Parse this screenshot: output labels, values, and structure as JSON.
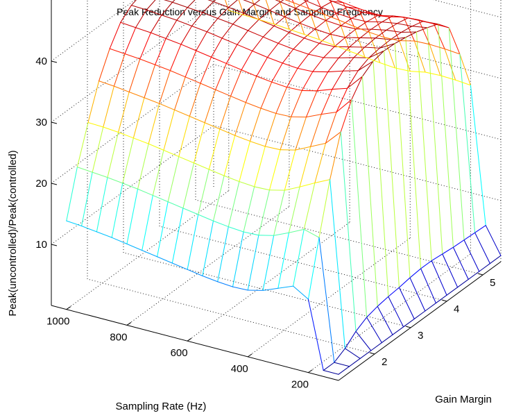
{
  "chart_data": {
    "type": "surface-mesh",
    "title": "Peak Reduction versus Gain Margin and Sampling Frequency",
    "xlabel": "Gain Margin",
    "ylabel": "Sampling Rate (Hz)",
    "zlabel": "Peak(uncontrolled)/Peak(controlled)",
    "x_ticks": [
      "2",
      "3",
      "4",
      "5"
    ],
    "y_ticks": [
      "1000",
      "800",
      "600",
      "400",
      "200"
    ],
    "z_ticks": [
      "10",
      "20",
      "30",
      "40"
    ],
    "xlim": [
      1,
      5.5
    ],
    "ylim": [
      100,
      1050
    ],
    "zlim": [
      0,
      50
    ],
    "colormap": "jet",
    "grid": true,
    "gain_margin": [
      1.0,
      1.3,
      1.6,
      1.9,
      2.2,
      2.5,
      2.8,
      3.1,
      3.4,
      3.7,
      4.0,
      4.3,
      4.6,
      4.9,
      5.2,
      5.5
    ],
    "sampling_rate": [
      1000,
      950,
      900,
      850,
      800,
      750,
      700,
      650,
      600,
      550,
      500,
      450,
      400,
      350,
      300,
      250,
      200,
      150,
      100
    ],
    "peak_ratio": [
      [
        14.5,
        22.0,
        28.0,
        33.5,
        37.5,
        40.5,
        42.0,
        42.7,
        43.2,
        43.4,
        43.5,
        43.4,
        43.1,
        41.5,
        36.0,
        29.5
      ],
      [
        14.3,
        21.8,
        27.9,
        33.3,
        37.3,
        40.3,
        41.9,
        42.6,
        43.1,
        43.3,
        43.4,
        43.3,
        43.0,
        41.4,
        35.9,
        29.4
      ],
      [
        14.0,
        21.6,
        27.7,
        33.0,
        37.1,
        40.1,
        41.7,
        42.5,
        43.0,
        43.2,
        43.3,
        43.2,
        42.9,
        41.3,
        35.8,
        29.3
      ],
      [
        13.7,
        21.3,
        27.4,
        32.7,
        36.8,
        39.8,
        41.5,
        42.3,
        42.8,
        43.0,
        43.1,
        43.0,
        42.7,
        41.1,
        35.7,
        29.2
      ],
      [
        13.3,
        21.0,
        27.1,
        32.4,
        36.5,
        39.5,
        41.2,
        42.1,
        42.6,
        42.8,
        42.9,
        42.8,
        42.5,
        40.9,
        35.5,
        29.0
      ],
      [
        12.9,
        20.6,
        26.7,
        32.0,
        36.1,
        39.1,
        40.9,
        41.8,
        42.3,
        42.5,
        42.6,
        42.5,
        42.2,
        40.6,
        35.3,
        28.8
      ],
      [
        12.5,
        20.2,
        26.3,
        31.6,
        35.7,
        38.7,
        40.5,
        41.5,
        42.0,
        42.2,
        42.3,
        42.2,
        41.9,
        40.3,
        35.0,
        28.6
      ],
      [
        12.1,
        19.8,
        25.9,
        31.2,
        35.3,
        38.3,
        40.1,
        41.1,
        41.6,
        41.8,
        41.9,
        41.8,
        41.5,
        40.0,
        34.7,
        28.3
      ],
      [
        11.7,
        19.4,
        25.5,
        30.8,
        34.9,
        37.9,
        39.7,
        40.7,
        41.2,
        41.4,
        41.5,
        41.4,
        41.1,
        39.6,
        34.4,
        28.0
      ],
      [
        11.3,
        19.0,
        25.1,
        30.4,
        34.5,
        37.5,
        39.3,
        40.3,
        40.8,
        41.0,
        41.1,
        41.0,
        40.7,
        39.2,
        34.0,
        27.7
      ],
      [
        11.0,
        18.7,
        24.8,
        30.1,
        34.2,
        37.2,
        39.0,
        40.0,
        40.5,
        40.7,
        40.8,
        40.7,
        40.4,
        38.9,
        33.7,
        27.4
      ],
      [
        10.8,
        18.5,
        24.6,
        29.9,
        34.0,
        37.0,
        38.8,
        39.8,
        40.3,
        40.5,
        40.6,
        40.5,
        40.2,
        38.7,
        33.5,
        27.2
      ],
      [
        10.9,
        18.6,
        24.7,
        30.0,
        34.1,
        37.1,
        38.9,
        39.9,
        40.4,
        40.6,
        40.7,
        40.6,
        40.3,
        38.8,
        33.6,
        27.3
      ],
      [
        11.5,
        19.2,
        25.3,
        30.6,
        34.7,
        37.7,
        39.5,
        40.5,
        41.0,
        41.2,
        41.3,
        41.2,
        40.9,
        39.4,
        34.2,
        27.8
      ],
      [
        12.5,
        20.3,
        26.5,
        31.8,
        35.8,
        38.6,
        40.3,
        41.2,
        41.6,
        41.8,
        41.8,
        41.6,
        41.2,
        39.6,
        34.3,
        27.9
      ],
      [
        13.5,
        21.5,
        27.8,
        33.0,
        36.8,
        39.4,
        41.0,
        41.8,
        42.1,
        42.2,
        42.1,
        41.8,
        41.3,
        39.6,
        34.2,
        27.8
      ],
      [
        12.0,
        20.8,
        29.0,
        35.5,
        39.5,
        42.0,
        43.2,
        43.6,
        43.5,
        43.2,
        42.8,
        42.2,
        41.5,
        39.6,
        34.0,
        27.6
      ],
      [
        1.0,
        1.0,
        2.0,
        3.5,
        4.5,
        5.0,
        5.3,
        5.5,
        5.8,
        6.0,
        6.0,
        5.8,
        5.6,
        5.5,
        5.4,
        5.3
      ],
      [
        1.0,
        1.0,
        1.0,
        1.0,
        1.0,
        1.0,
        1.0,
        1.0,
        1.0,
        1.0,
        1.0,
        1.0,
        1.0,
        1.0,
        1.0,
        1.0
      ]
    ]
  }
}
